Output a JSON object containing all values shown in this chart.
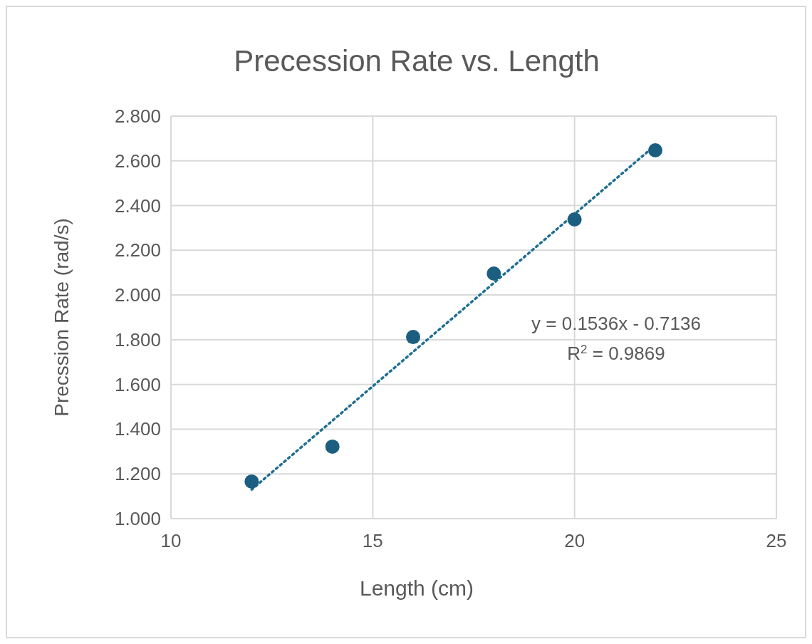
{
  "chart_data": {
    "type": "scatter",
    "title": "Precession Rate vs. Length",
    "xlabel": "Length (cm)",
    "ylabel": "Precssion Rate (rad/s)",
    "xlim": [
      10,
      25
    ],
    "xticks": [
      10,
      15,
      20,
      25
    ],
    "ylim": [
      1.0,
      2.8
    ],
    "yticks": [
      {
        "value": 1.0,
        "label": "1.000"
      },
      {
        "value": 1.2,
        "label": "1.200"
      },
      {
        "value": 1.4,
        "label": "1.400"
      },
      {
        "value": 1.6,
        "label": "1.600"
      },
      {
        "value": 1.8,
        "label": "1.800"
      },
      {
        "value": 2.0,
        "label": "2.000"
      },
      {
        "value": 2.2,
        "label": "2.200"
      },
      {
        "value": 2.4,
        "label": "2.400"
      },
      {
        "value": 2.6,
        "label": "2.600"
      },
      {
        "value": 2.8,
        "label": "2.800"
      }
    ],
    "grid": true,
    "marker": "circle",
    "series": [
      {
        "color": "#1b5e80",
        "x": [
          12,
          14,
          16,
          18,
          20,
          22
        ],
        "values": [
          1.166,
          1.322,
          1.812,
          2.096,
          2.338,
          2.647
        ]
      },
      {
        "type": "line",
        "color": "#1f6f93",
        "line_style": "dotted",
        "marker": "none",
        "x": [
          12,
          22
        ],
        "values": [
          1.13,
          2.67
        ]
      }
    ],
    "annotations": [
      "y = 0.1536x - 0.7136",
      "R$^{2}$ = 0.9869"
    ]
  }
}
